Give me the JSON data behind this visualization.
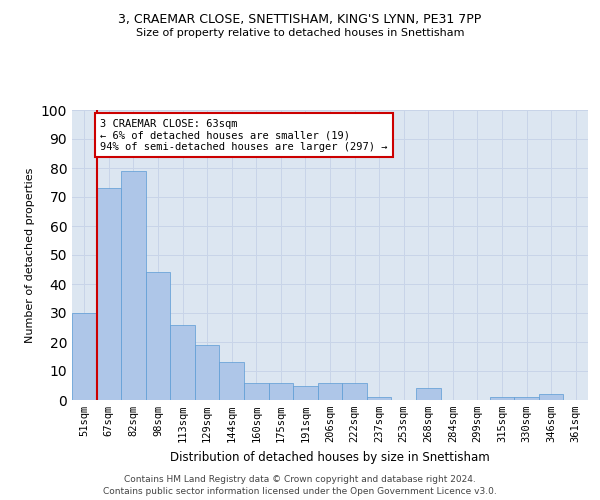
{
  "title1": "3, CRAEMAR CLOSE, SNETTISHAM, KING'S LYNN, PE31 7PP",
  "title2": "Size of property relative to detached houses in Snettisham",
  "xlabel": "Distribution of detached houses by size in Snettisham",
  "ylabel": "Number of detached properties",
  "categories": [
    "51sqm",
    "67sqm",
    "82sqm",
    "98sqm",
    "113sqm",
    "129sqm",
    "144sqm",
    "160sqm",
    "175sqm",
    "191sqm",
    "206sqm",
    "222sqm",
    "237sqm",
    "253sqm",
    "268sqm",
    "284sqm",
    "299sqm",
    "315sqm",
    "330sqm",
    "346sqm",
    "361sqm"
  ],
  "values": [
    30,
    73,
    79,
    44,
    26,
    19,
    13,
    6,
    6,
    5,
    6,
    6,
    1,
    0,
    4,
    0,
    0,
    1,
    1,
    2,
    0
  ],
  "bar_color": "#aec6e8",
  "bar_edge_color": "#5b9bd5",
  "vline_color": "#cc0000",
  "annotation_text": "3 CRAEMAR CLOSE: 63sqm\n← 6% of detached houses are smaller (19)\n94% of semi-detached houses are larger (297) →",
  "annotation_box_color": "#ffffff",
  "annotation_box_edge_color": "#cc0000",
  "ylim": [
    0,
    100
  ],
  "yticks": [
    0,
    10,
    20,
    30,
    40,
    50,
    60,
    70,
    80,
    90,
    100
  ],
  "grid_color": "#c8d4e8",
  "bg_color": "#dce6f1",
  "footer1": "Contains HM Land Registry data © Crown copyright and database right 2024.",
  "footer2": "Contains public sector information licensed under the Open Government Licence v3.0."
}
